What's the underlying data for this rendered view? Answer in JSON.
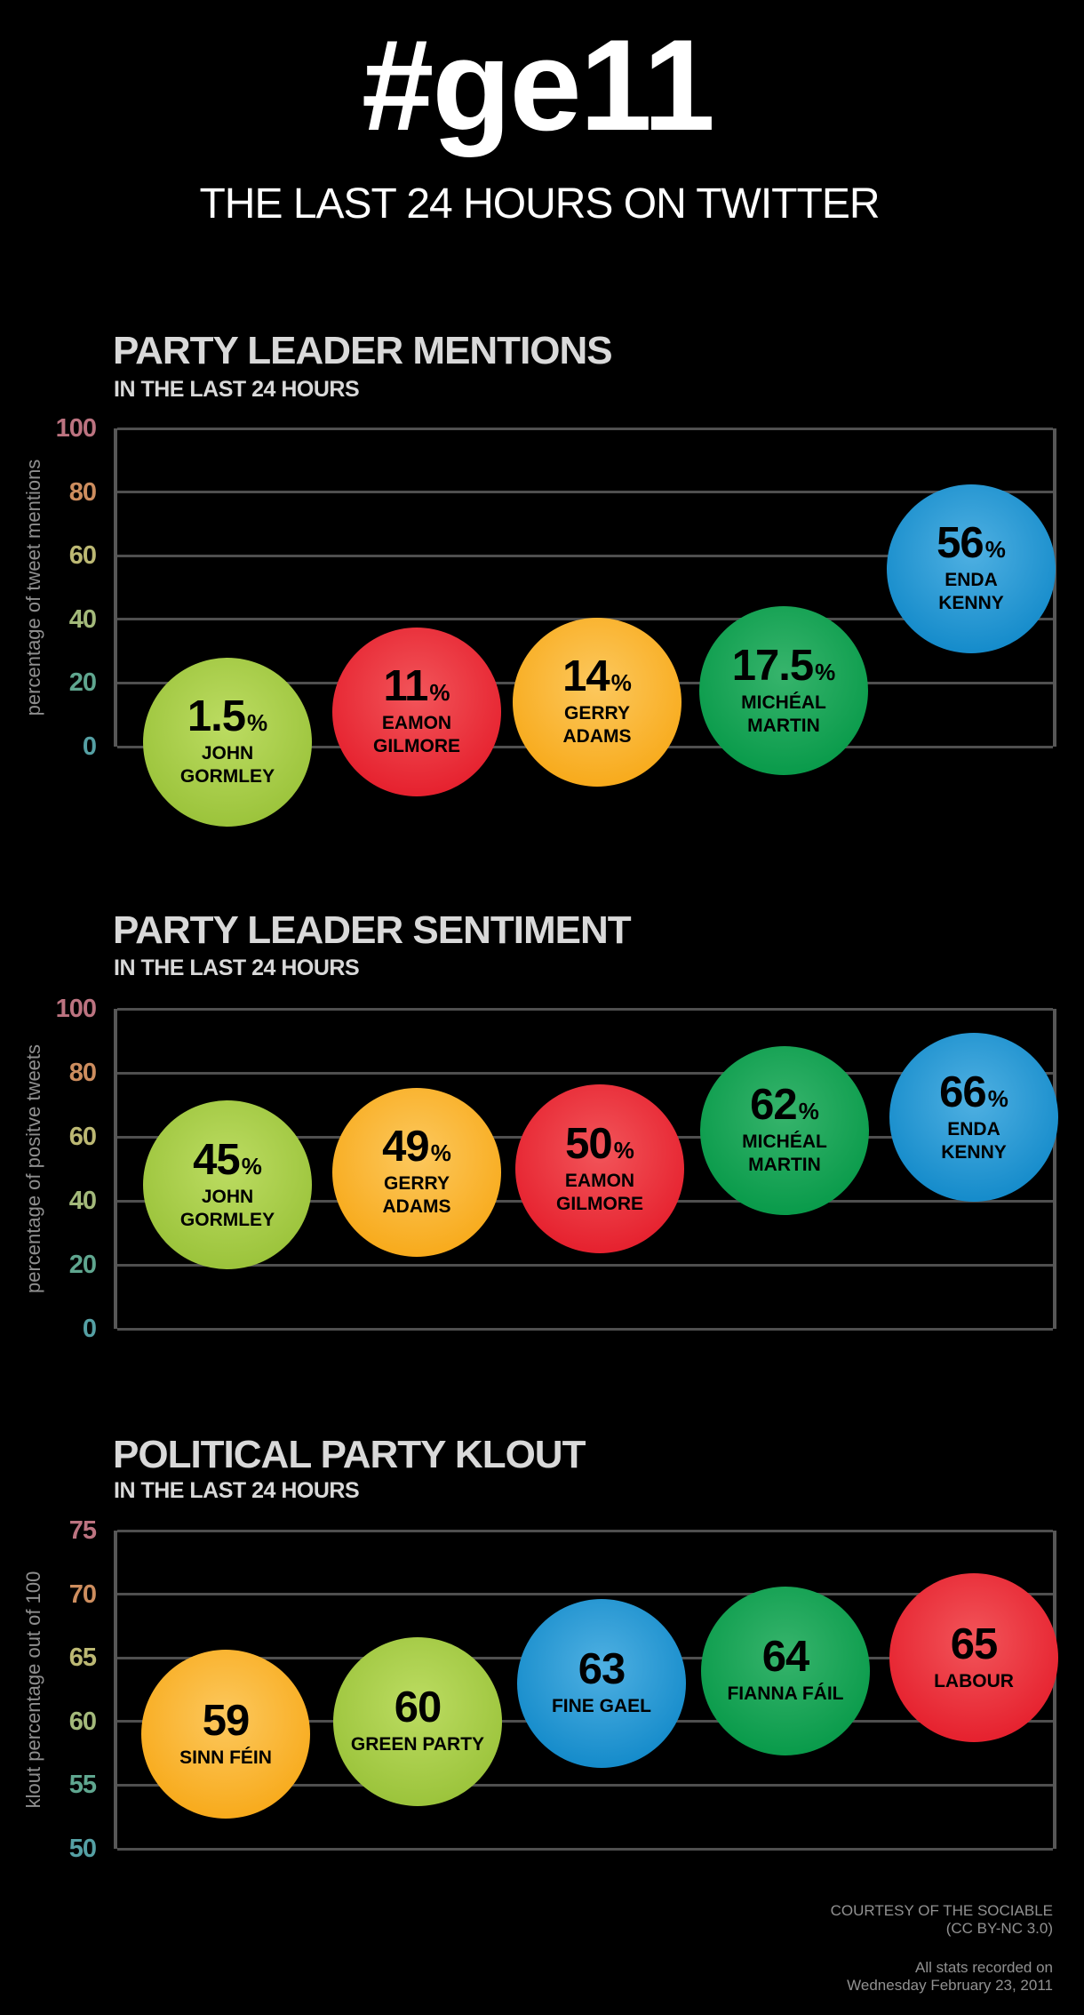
{
  "page": {
    "title": "#ge11",
    "subtitle": "THE LAST 24 HOURS ON TWITTER",
    "footer": {
      "credit_line1": "COURTESY OF THE SOCIABLE",
      "credit_line2": "(CC BY-NC 3.0)",
      "recorded_line1": "All stats recorded on",
      "recorded_line2": "Wednesday February 23, 2011"
    }
  },
  "style": {
    "background": "#000000",
    "title_color": "#ffffff",
    "heading_color": "#d9d9d9",
    "axis_label_color": "#8f8f8f",
    "grid_color": "#4f4f4f",
    "frame_color": "#575757",
    "footer_color": "#919191",
    "bubble_text_color": "#000000",
    "tick_colors": [
      "#bc7380",
      "#cd8d5e",
      "#bcb873",
      "#a3b97a",
      "#5fa68f",
      "#55a0a4"
    ]
  },
  "palette": {
    "green-yellow": {
      "edge": "#9cc43c",
      "center": "#bcdc62"
    },
    "red": {
      "edge": "#e6222f",
      "center": "#f2555a"
    },
    "amber": {
      "edge": "#f8ab1d",
      "center": "#fcc85e"
    },
    "green": {
      "edge": "#0a9b4b",
      "center": "#37b46c"
    },
    "blue": {
      "edge": "#168ccb",
      "center": "#4fb0e2"
    }
  },
  "chart_data": [
    {
      "type": "scatter",
      "variant": "bubble",
      "title": "PARTY LEADER MENTIONS",
      "subtitle": "IN THE LAST 24 HOURS",
      "ylabel": "percentage of tweet mentions",
      "unit": "%",
      "ylim": [
        0,
        100
      ],
      "yticks": [
        100,
        80,
        60,
        40,
        20,
        0
      ],
      "grid": true,
      "legend": "none",
      "categories": [
        "JOHN GORMLEY",
        "EAMON GILMORE",
        "GERRY ADAMS",
        "MICHÉAL MARTIN",
        "ENDA KENNY"
      ],
      "values": [
        1.5,
        11,
        14,
        17.5,
        56
      ],
      "value_labels": [
        "1.5",
        "11",
        "14",
        "17.5",
        "56"
      ],
      "colors": [
        "green-yellow",
        "red",
        "amber",
        "green",
        "blue"
      ],
      "name_lines": [
        [
          "JOHN",
          "GORMLEY"
        ],
        [
          "EAMON",
          "GILMORE"
        ],
        [
          "GERRY",
          "ADAMS"
        ],
        [
          "MICHÉAL",
          "MARTIN"
        ],
        [
          "ENDA",
          "KENNY"
        ]
      ],
      "layout": {
        "x_centers": [
          124,
          337,
          540,
          750,
          961
        ],
        "radius": 95
      }
    },
    {
      "type": "scatter",
      "variant": "bubble",
      "title": "PARTY LEADER SENTIMENT",
      "subtitle": "IN THE LAST 24 HOURS",
      "ylabel": "percentage of positve tweets",
      "unit": "%",
      "ylim": [
        0,
        100
      ],
      "yticks": [
        100,
        80,
        60,
        40,
        20,
        0
      ],
      "grid": true,
      "legend": "none",
      "categories": [
        "JOHN GORMLEY",
        "GERRY ADAMS",
        "EAMON GILMORE",
        "MICHÉAL MARTIN",
        "ENDA KENNY"
      ],
      "values": [
        45,
        49,
        50,
        62,
        66
      ],
      "value_labels": [
        "45",
        "49",
        "50",
        "62",
        "66"
      ],
      "colors": [
        "green-yellow",
        "amber",
        "red",
        "green",
        "blue"
      ],
      "name_lines": [
        [
          "JOHN",
          "GORMLEY"
        ],
        [
          "GERRY",
          "ADAMS"
        ],
        [
          "EAMON",
          "GILMORE"
        ],
        [
          "MICHÉAL",
          "MARTIN"
        ],
        [
          "ENDA",
          "KENNY"
        ]
      ],
      "layout": {
        "x_centers": [
          124,
          337,
          543,
          751,
          964
        ],
        "radius": 95
      }
    },
    {
      "type": "scatter",
      "variant": "bubble",
      "title": "POLITICAL PARTY KLOUT",
      "subtitle": "IN THE LAST 24 HOURS",
      "ylabel": "klout percentage out of 100",
      "unit": "",
      "ylim": [
        50,
        75
      ],
      "yticks": [
        75,
        70,
        65,
        60,
        55,
        50
      ],
      "grid": true,
      "legend": "none",
      "categories": [
        "SINN FÉIN",
        "GREEN PARTY",
        "FINE GAEL",
        "FIANNA FÁIL",
        "LABOUR"
      ],
      "values": [
        59,
        60,
        63,
        64,
        65
      ],
      "value_labels": [
        "59",
        "60",
        "63",
        "64",
        "65"
      ],
      "colors": [
        "amber",
        "green-yellow",
        "blue",
        "green",
        "red"
      ],
      "name_lines": [
        [
          "SINN FÉIN"
        ],
        [
          "GREEN PARTY"
        ],
        [
          "FINE GAEL"
        ],
        [
          "FIANNA FÁIL"
        ],
        [
          "LABOUR"
        ]
      ],
      "layout": {
        "x_centers": [
          122,
          338,
          545,
          752,
          964
        ],
        "radius": 95
      }
    }
  ]
}
